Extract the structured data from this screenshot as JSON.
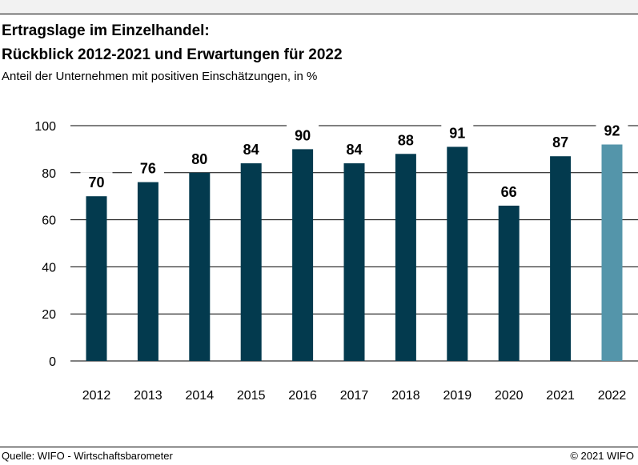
{
  "header": {
    "title_line1": "Ertragslage im Einzelhandel:",
    "title_line2": "Rückblick 2012-2021 und Erwartungen für 2022",
    "subtitle": "Anteil der Unternehmen mit positiven Einschätzungen, in %"
  },
  "footer": {
    "source": "Quelle: WIFO - Wirtschaftsbarometer",
    "copyright": "© 2021 WIFO"
  },
  "chart_data": {
    "type": "bar",
    "title": "Ertragslage im Einzelhandel: Rückblick 2012-2021 und Erwartungen für 2022",
    "subtitle": "Anteil der Unternehmen mit positiven Einschätzungen, in %",
    "categories": [
      "2012",
      "2013",
      "2014",
      "2015",
      "2016",
      "2017",
      "2018",
      "2019",
      "2020",
      "2021",
      "2022"
    ],
    "values": [
      70,
      76,
      80,
      84,
      90,
      84,
      88,
      91,
      66,
      87,
      92
    ],
    "data_labels": [
      "70",
      "76",
      "80",
      "84",
      "90",
      "84",
      "88",
      "91",
      "66",
      "87",
      "92"
    ],
    "highlight_index": 10,
    "ylim": [
      0,
      100
    ],
    "yticks": [
      0,
      20,
      40,
      60,
      80,
      100
    ],
    "grid": true,
    "colors": {
      "bar": "#033a4e",
      "highlight": "#5495aa",
      "grid": "#000000"
    }
  }
}
